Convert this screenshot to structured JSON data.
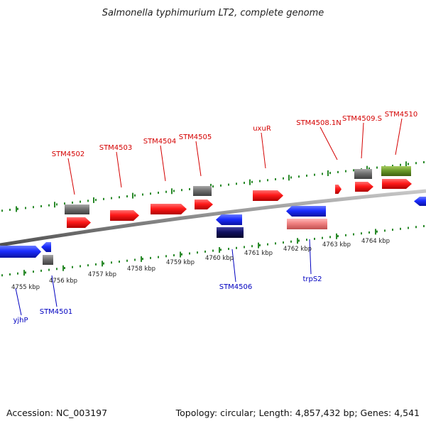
{
  "title": "Salmonella typhimurium LT2, complete genome",
  "footer": {
    "accession": "Accession: NC_003197",
    "summary": "Topology: circular; Length: 4,857,432 bp; Genes: 4,541"
  },
  "colors": {
    "forward_label": "#d40000",
    "reverse_label": "#0000c0",
    "backbone": "#8a8a8a",
    "ticks": "#2a8a2a",
    "gene_red": "#ff2020",
    "gene_blue": "#1a2cff",
    "gene_gray": "#707070",
    "gene_navy": "#101060",
    "gene_pink": "#f08080",
    "gene_olive": "#6a9a2a"
  },
  "scale_labels": [
    "4755 kbp",
    "4756 kbp",
    "4757 kbp",
    "4758 kbp",
    "4759 kbp",
    "4760 kbp",
    "4761 kbp",
    "4762 kbp",
    "4763 kbp",
    "4764 kbp"
  ],
  "forward_labels": [
    "STM4502",
    "STM4503",
    "STM4504",
    "STM4505",
    "uxuR",
    "STM4508.1N",
    "STM4509.S",
    "STM4510"
  ],
  "reverse_labels": [
    "yjhP",
    "STM4501",
    "STM4506",
    "trpS2"
  ]
}
